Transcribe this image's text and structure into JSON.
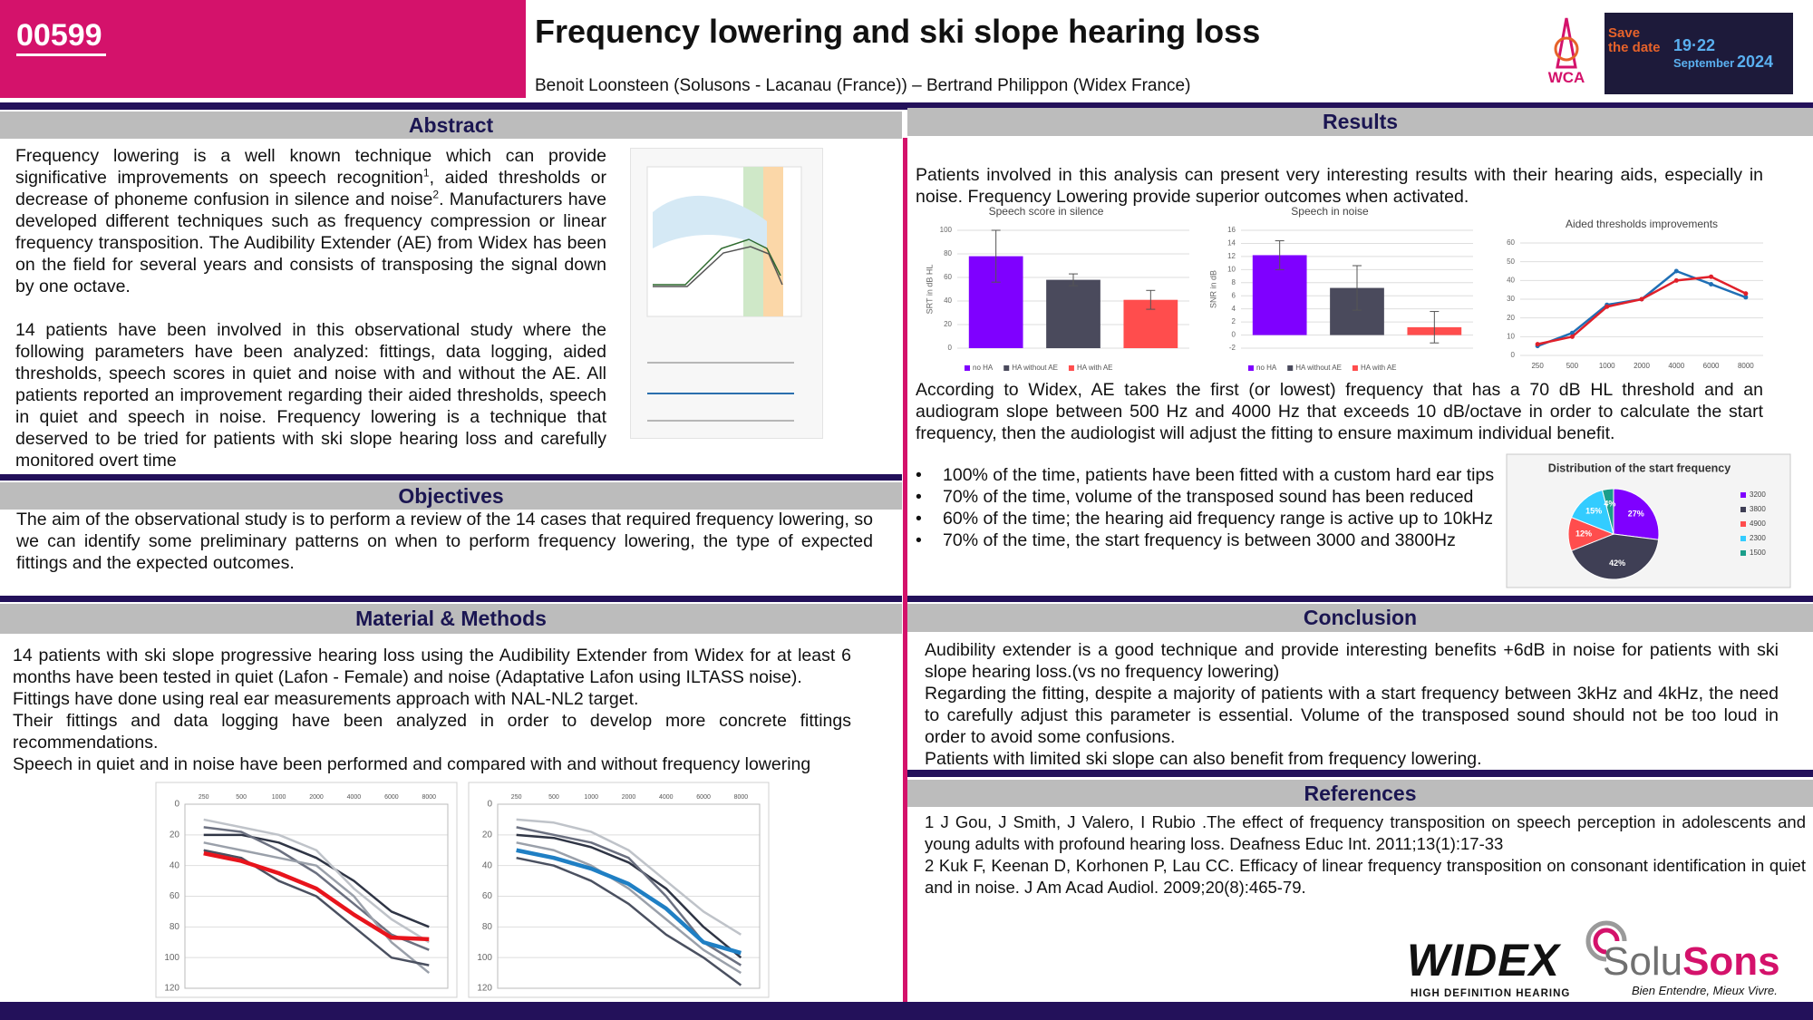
{
  "header": {
    "id": "00599",
    "title": "Frequency lowering and ski slope hearing loss",
    "authors": "Benoit Loonsteen (Solusons - Lacanau (France)) – Bertrand Philippon (Widex France)"
  },
  "event_logo": {
    "org": "WCA",
    "save": "Save",
    "date_label": "the date",
    "dates": "19·22",
    "month": "September",
    "year": "2024"
  },
  "abstract": {
    "heading": "Abstract",
    "paragraph1": [
      "Frequency lowering is a well known technique which can provide significative improvements on speech recognition",
      "1",
      ", aided thresholds or decrease of phoneme confusion in silence and noise",
      "2",
      ". Manufacturers have developed different techniques such as frequency compression or linear frequency transposition. The Audibility Extender (AE) from Widex has been on the field for several years and consists of transposing the signal down by one octave."
    ],
    "paragraph2": "14 patients have been involved in this observational study where the following parameters have been analyzed: fittings, data logging, aided thresholds, speech scores in quiet and noise with and without the AE. All patients reported an improvement regarding their aided thresholds, speech in quiet and speech in noise. Frequency lowering is a technique that deserved to be tried for patients with ski slope hearing loss and carefully monitored overt time"
  },
  "objectives": {
    "heading": "Objectives",
    "text": "The aim of the observational study is to perform a review of the 14 cases that required frequency lowering, so we can identify some preliminary patterns on when to perform frequency lowering, the type of expected fittings and the expected outcomes."
  },
  "methods": {
    "heading": "Material & Methods",
    "paragraphs": [
      "14 patients with ski slope progressive hearing loss using the Audibility Extender from Widex for at least 6 months have been tested in quiet (Lafon - Female) and noise (Adaptative Lafon using ILTASS noise).",
      "Fittings have done using real ear measurements approach with NAL-NL2 target.",
      "Their fittings and data logging have been analyzed in order to develop more concrete fittings recommendations.",
      "Speech in quiet and in noise have been performed and compared with and without frequency lowering"
    ]
  },
  "results": {
    "heading": "Results",
    "intro": "Patients involved in this analysis can present very interesting results with their hearing aids, especially in noise. Frequency Lowering provide superior outcomes when activated.",
    "ae_text": "According to Widex, AE takes the first (or lowest) frequency that has a 70 dB HL threshold and an audiogram slope between 500 Hz and 4000 Hz that exceeds 10 dB/octave in order to calculate the start frequency, then the audiologist will adjust the fitting to ensure maximum individual benefit.",
    "bullets": [
      "100% of the time, patients have been fitted with a custom hard ear tips",
      "70% of the time, volume of the transposed sound has been reduced",
      "60% of the time; the hearing aid frequency range is active up to 10kHz",
      "70% of the time, the start frequency is between 3000 and 3800Hz"
    ]
  },
  "conclusion": {
    "heading": "Conclusion",
    "paragraphs": [
      "Audibility extender is a good technique and provide interesting benefits +6dB in noise for patients with ski slope hearing loss.(vs no frequency lowering)",
      "Regarding the fitting, despite a majority of patients with a start frequency between 3kHz and 4kHz, the need to carefully adjust this parameter is essential. Volume of the transposed sound should not be too loud in order to avoid some confusions.",
      "Patients with limited ski slope can also benefit from frequency lowering."
    ]
  },
  "references": {
    "heading": "References",
    "items": [
      "1 J Gou, J Smith, J Valero, I Rubio .The effect of frequency transposition on speech perception in adolescents and young adults with profound hearing loss. Deafness Educ Int. 2011;13(1):17-33",
      "2 Kuk F, Keenan D, Korhonen P, Lau CC. Efficacy of linear frequency transposition on consonant identification in quiet and in noise. J Am Acad Audiol. 2009;20(8):465-79."
    ]
  },
  "logos": {
    "widex": "WIDEX",
    "widex_tagline": "HIGH DEFINITION HEARING",
    "solu": "Solu",
    "sons": "Sons",
    "solusons_tagline": "Bien Entendre, Mieux Vivre."
  },
  "chart_data": [
    {
      "type": "line",
      "categories": [
        "250",
        "500",
        "1000",
        "2000",
        "4000",
        "6000",
        "8000"
      ],
      "ylim": [
        0,
        120
      ],
      "yticks": [
        0,
        20,
        40,
        60,
        80,
        100,
        120
      ],
      "y_inverted": true,
      "x_axis_position": "top",
      "grid": true,
      "series": [
        {
          "color": "#2f3545",
          "line_width": 2.5,
          "values": [
            20,
            20,
            25,
            35,
            50,
            70,
            80
          ]
        },
        {
          "color": "#6b7080",
          "line_width": 2.5,
          "values": [
            15,
            18,
            30,
            45,
            65,
            85,
            95
          ]
        },
        {
          "color": "#9aa0aa",
          "line_width": 2.5,
          "values": [
            25,
            30,
            35,
            40,
            60,
            90,
            110
          ]
        },
        {
          "color": "#4a5060",
          "line_width": 2.5,
          "values": [
            30,
            35,
            50,
            60,
            80,
            100,
            105
          ]
        },
        {
          "color": "#bfc3c9",
          "line_width": 2.5,
          "values": [
            10,
            15,
            20,
            30,
            55,
            75,
            90
          ]
        },
        {
          "color": "#e8141c",
          "line_width": 4.5,
          "values": [
            32,
            37,
            45,
            55,
            72,
            87,
            88
          ]
        }
      ]
    },
    {
      "type": "line",
      "categories": [
        "250",
        "500",
        "1000",
        "2000",
        "4000",
        "6000",
        "8000"
      ],
      "ylim": [
        0,
        120
      ],
      "yticks": [
        0,
        20,
        40,
        60,
        80,
        100,
        120
      ],
      "y_inverted": true,
      "x_axis_position": "top",
      "grid": true,
      "series": [
        {
          "color": "#2f3545",
          "line_width": 2.5,
          "values": [
            20,
            22,
            28,
            38,
            55,
            80,
            100
          ]
        },
        {
          "color": "#6b7080",
          "line_width": 2.5,
          "values": [
            15,
            20,
            25,
            35,
            60,
            90,
            105
          ]
        },
        {
          "color": "#9aa0aa",
          "line_width": 2.5,
          "values": [
            25,
            30,
            40,
            55,
            75,
            95,
            110
          ]
        },
        {
          "color": "#4a5060",
          "line_width": 2.5,
          "values": [
            35,
            40,
            50,
            65,
            85,
            100,
            118
          ]
        },
        {
          "color": "#bfc3c9",
          "line_width": 2.5,
          "values": [
            10,
            12,
            18,
            30,
            50,
            70,
            85
          ]
        },
        {
          "color": "#1f7fc4",
          "line_width": 4.5,
          "values": [
            30,
            35,
            42,
            52,
            68,
            90,
            97
          ]
        }
      ]
    },
    {
      "type": "bar",
      "title": "Speech score in silence",
      "ylabel": "SRT in dB HL",
      "ylim": [
        0,
        100
      ],
      "yticks": [
        0,
        20,
        40,
        60,
        80,
        100
      ],
      "grid": true,
      "series": [
        {
          "name": "no HA",
          "color": "#7f00ff",
          "values": [
            78
          ],
          "errors": [
            22
          ]
        },
        {
          "name": "HA without AE",
          "color": "#4a4a5c",
          "values": [
            58
          ],
          "errors": [
            5
          ]
        },
        {
          "name": "HA with AE",
          "color": "#ff4d4d",
          "values": [
            41
          ],
          "errors": [
            8
          ]
        }
      ]
    },
    {
      "type": "bar",
      "title": "Speech in noise",
      "ylabel": "SNR in dB",
      "ylim": [
        -2,
        16
      ],
      "yticks": [
        -2,
        0,
        2,
        4,
        6,
        8,
        10,
        12,
        14,
        16
      ],
      "grid": true,
      "series": [
        {
          "name": "no HA",
          "color": "#7f00ff",
          "values": [
            12.2
          ],
          "errors": [
            2.2
          ]
        },
        {
          "name": "HA without AE",
          "color": "#4a4a5c",
          "values": [
            7.2
          ],
          "errors": [
            3.4
          ]
        },
        {
          "name": "HA with AE",
          "color": "#ff4d4d",
          "values": [
            1.2
          ],
          "errors": [
            2.4
          ]
        }
      ]
    },
    {
      "type": "line",
      "title": "Aided thresholds improvements",
      "categories": [
        "250",
        "500",
        "1000",
        "2000",
        "4000",
        "6000",
        "8000"
      ],
      "ylim": [
        0,
        60
      ],
      "yticks": [
        0,
        10,
        20,
        30,
        40,
        50,
        60
      ],
      "grid": true,
      "markers": true,
      "series": [
        {
          "color": "#1f6fb5",
          "line_width": 2.5,
          "values": [
            5,
            12,
            27,
            30,
            45,
            38,
            31
          ]
        },
        {
          "color": "#e0202a",
          "line_width": 2.5,
          "values": [
            6,
            10,
            26,
            30,
            40,
            42,
            33
          ]
        }
      ]
    },
    {
      "type": "pie",
      "title": "Distribution of the start frequency",
      "categories": [
        "3200",
        "3800",
        "4900",
        "2300",
        "1500"
      ],
      "values": [
        27,
        42,
        12,
        15,
        4
      ],
      "value_labels": [
        "27%",
        "42%",
        "12%",
        "15%",
        "4%"
      ],
      "colors": [
        "#7f00ff",
        "#3f3f55",
        "#ff4d4d",
        "#33ccff",
        "#1a9e8a"
      ]
    }
  ]
}
